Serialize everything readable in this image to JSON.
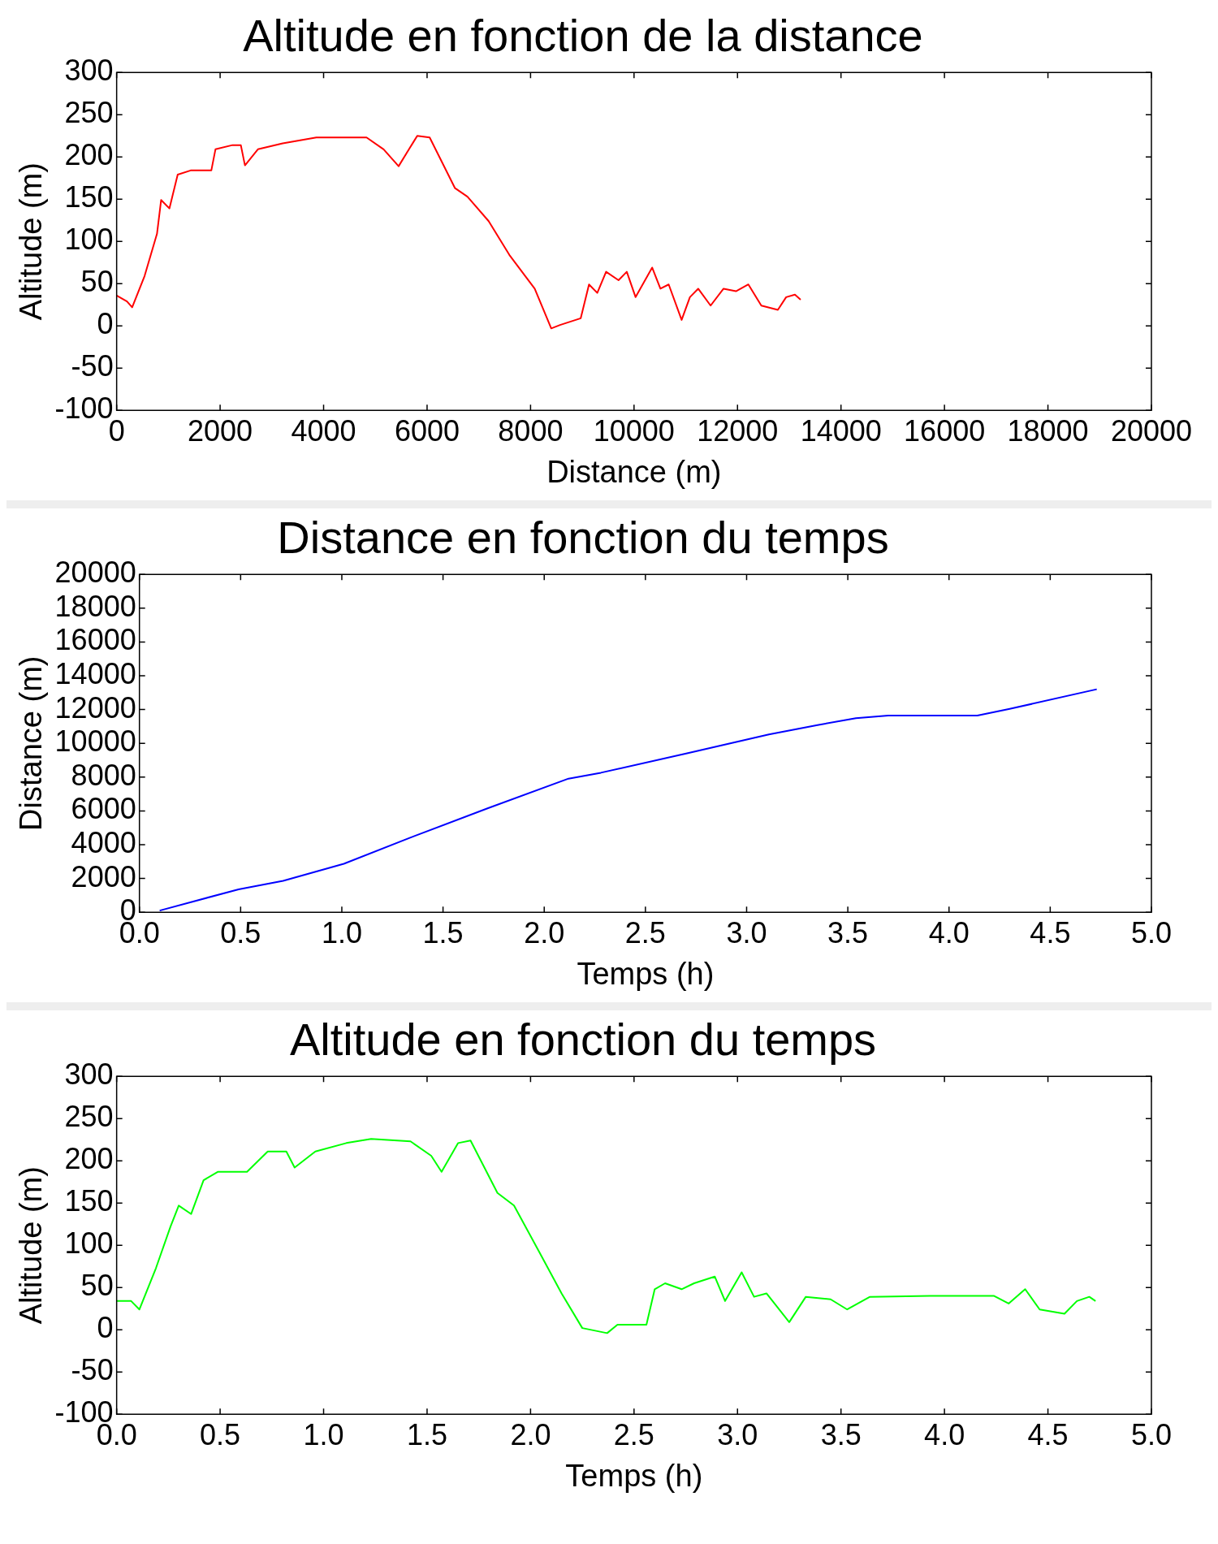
{
  "chart_data": [
    {
      "type": "line",
      "title": "Altitude en fonction de la distance",
      "xlabel": "Distance (m)",
      "ylabel": "Altitude (m)",
      "x": [
        0,
        200,
        300,
        540,
        780,
        860,
        1020,
        1180,
        1430,
        1830,
        1910,
        2240,
        2400,
        2480,
        2730,
        3210,
        3860,
        4350,
        4830,
        5160,
        5450,
        5650,
        5810,
        6050,
        6540,
        6780,
        7190,
        7590,
        8080,
        8400,
        8570,
        8970,
        9130,
        9290,
        9460,
        9700,
        9860,
        10030,
        10350,
        10510,
        10670,
        10920,
        11080,
        11240,
        11480,
        11730,
        11970,
        12210,
        12460,
        12780,
        12940,
        13110,
        13220
      ],
      "series": [
        {
          "color": "#ff0000",
          "values": [
            36,
            29,
            22,
            59,
            109,
            149,
            139,
            179,
            184,
            184,
            209,
            214,
            214,
            190,
            209,
            216,
            223,
            223,
            223,
            209,
            189,
            209,
            225,
            223,
            163,
            153,
            124,
            84,
            44,
            -3,
            1,
            9,
            49,
            39,
            64,
            54,
            64,
            34,
            69,
            44,
            49,
            7,
            34,
            44,
            24,
            44,
            41,
            49,
            24,
            19,
            34,
            37,
            31
          ]
        }
      ],
      "xlim": [
        0,
        20000
      ],
      "ylim": [
        -100,
        300
      ],
      "xticks": [
        0,
        2000,
        4000,
        6000,
        8000,
        10000,
        12000,
        14000,
        16000,
        18000,
        20000
      ],
      "yticks": [
        -100,
        -50,
        0,
        50,
        100,
        150,
        200,
        250,
        300
      ]
    },
    {
      "type": "line",
      "title": "Distance en fonction du temps",
      "xlabel": "Temps (h)",
      "ylabel": "Distance (m)",
      "x": [
        0.1,
        0.49,
        0.71,
        1.01,
        1.33,
        1.72,
        2.12,
        2.28,
        2.71,
        3.11,
        3.35,
        3.54,
        3.7,
        4.14,
        4.3,
        4.73
      ],
      "series": [
        {
          "color": "#0000ff",
          "values": [
            100,
            1360,
            1860,
            2870,
            4380,
            6150,
            7910,
            8260,
            9420,
            10530,
            11080,
            11490,
            11640,
            11640,
            12040,
            13200
          ]
        }
      ],
      "xlim": [
        0,
        5
      ],
      "ylim": [
        0,
        20000
      ],
      "xticks": [
        {
          "value": 0,
          "label": "0.0"
        },
        0.5,
        {
          "value": 1,
          "label": "1.0"
        },
        1.5,
        {
          "value": 2,
          "label": "2.0"
        },
        2.5,
        {
          "value": 3,
          "label": "3.0"
        },
        3.5,
        {
          "value": 4,
          "label": "4.0"
        },
        4.5,
        {
          "value": 5,
          "label": "5.0"
        }
      ],
      "yticks": [
        0,
        2000,
        4000,
        6000,
        8000,
        10000,
        12000,
        14000,
        16000,
        18000,
        20000
      ]
    },
    {
      "type": "line",
      "title": "Altitude en fonction du temps",
      "xlabel": "Temps (h)",
      "ylabel": "Altitude (m)",
      "x": [
        0,
        0.07,
        0.11,
        0.19,
        0.26,
        0.3,
        0.36,
        0.42,
        0.49,
        0.63,
        0.73,
        0.82,
        0.86,
        0.96,
        1.11,
        1.23,
        1.42,
        1.52,
        1.57,
        1.65,
        1.71,
        1.84,
        1.92,
        2.04,
        2.15,
        2.25,
        2.37,
        2.42,
        2.56,
        2.6,
        2.65,
        2.73,
        2.79,
        2.89,
        2.94,
        3.02,
        3.08,
        3.14,
        3.25,
        3.33,
        3.45,
        3.53,
        3.64,
        3.93,
        4.24,
        4.31,
        4.39,
        4.46,
        4.58,
        4.64,
        4.7,
        4.73
      ],
      "series": [
        {
          "color": "#00ff00",
          "values": [
            34,
            34,
            24,
            73,
            122,
            147,
            137,
            177,
            187,
            187,
            211,
            211,
            192,
            211,
            221,
            226,
            223,
            206,
            187,
            221,
            224,
            162,
            147,
            93,
            43,
            2,
            -4,
            6,
            6,
            48,
            55,
            48,
            55,
            63,
            34,
            68,
            39,
            43,
            9,
            39,
            36,
            24,
            39,
            40,
            40,
            31,
            48,
            24,
            19,
            34,
            39,
            34
          ]
        }
      ],
      "xlim": [
        0,
        5
      ],
      "ylim": [
        -100,
        300
      ],
      "xticks": [
        {
          "value": 0,
          "label": "0.0"
        },
        0.5,
        {
          "value": 1,
          "label": "1.0"
        },
        1.5,
        {
          "value": 2,
          "label": "2.0"
        },
        2.5,
        {
          "value": 3,
          "label": "3.0"
        },
        3.5,
        {
          "value": 4,
          "label": "4.0"
        },
        4.5,
        {
          "value": 5,
          "label": "5.0"
        }
      ],
      "yticks": [
        -100,
        -50,
        0,
        50,
        100,
        150,
        200,
        250,
        300
      ]
    }
  ]
}
